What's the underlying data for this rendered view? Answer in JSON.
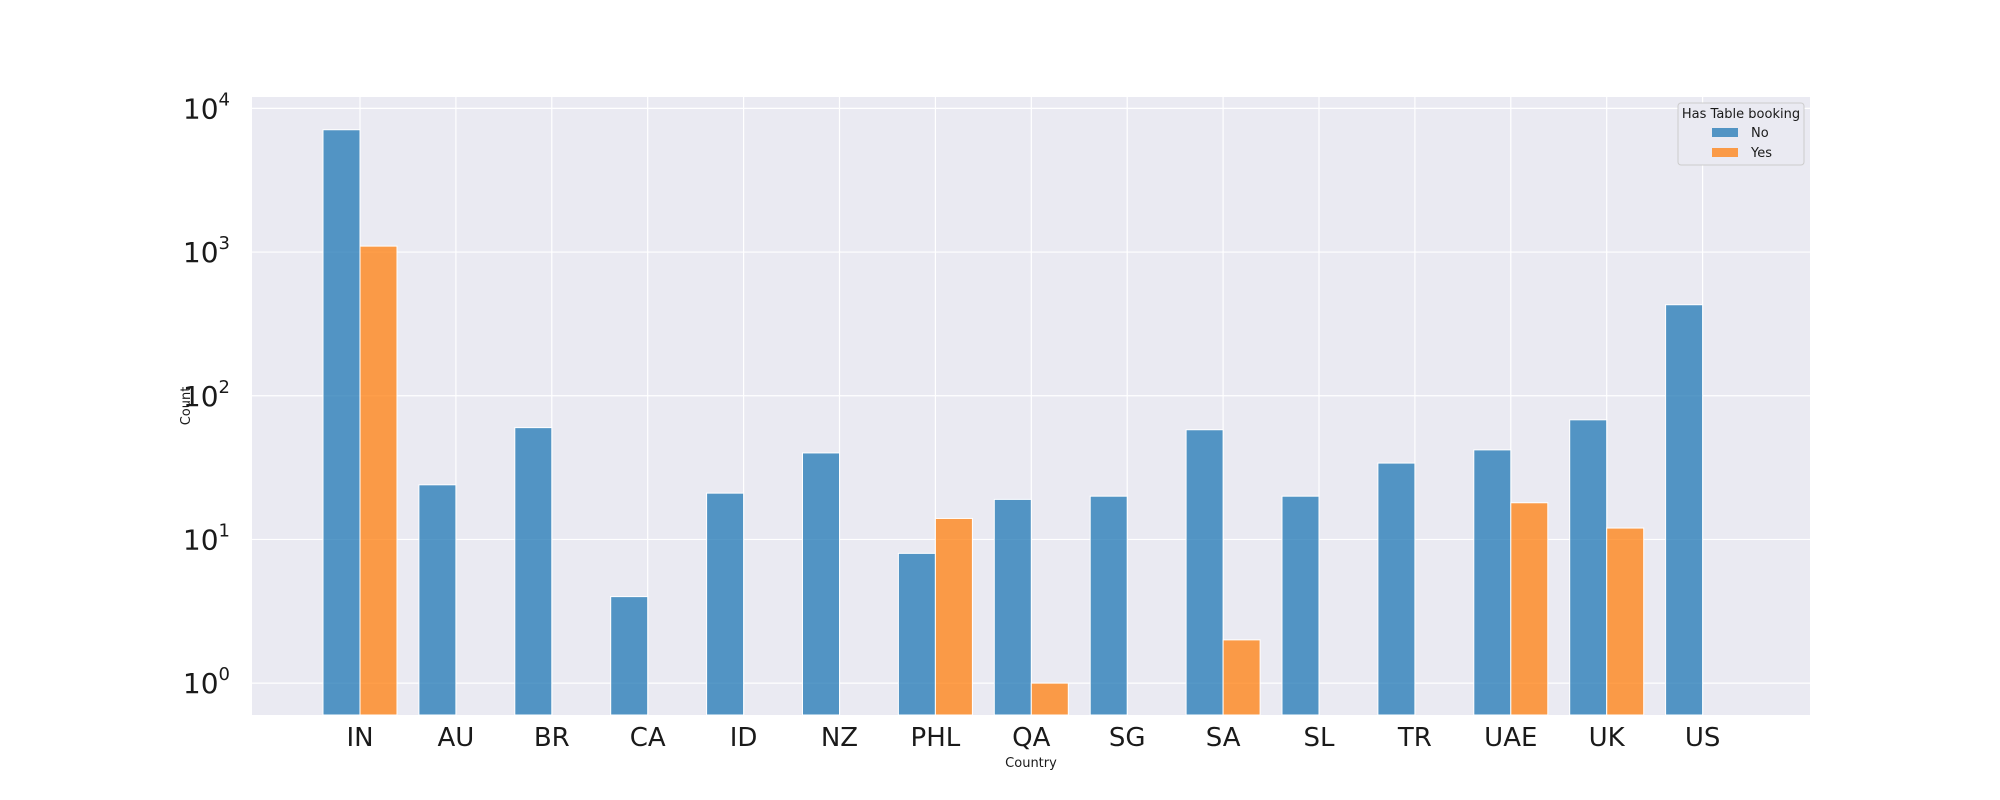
{
  "chart_data": {
    "type": "bar",
    "scale": "log",
    "xlabel": "Country",
    "ylabel": "Count",
    "categories": [
      "IN",
      "AU",
      "BR",
      "CA",
      "ID",
      "NZ",
      "PHL",
      "QA",
      "SG",
      "SA",
      "SL",
      "TR",
      "UAE",
      "UK",
      "US"
    ],
    "ylim": [
      0.6,
      12000
    ],
    "yticks": [
      1,
      10,
      100,
      1000,
      10000
    ],
    "ytick_labels": [
      {
        "base": "10",
        "exp": "0"
      },
      {
        "base": "10",
        "exp": "1"
      },
      {
        "base": "10",
        "exp": "2"
      },
      {
        "base": "10",
        "exp": "3"
      },
      {
        "base": "10",
        "exp": "4"
      }
    ],
    "grid": true,
    "legend": {
      "title": "Has Table booking",
      "placement": "top-right"
    },
    "series": [
      {
        "name": "No",
        "color": "#1f77b4",
        "values": [
          7100,
          24,
          60,
          4,
          21,
          40,
          8,
          19,
          20,
          58,
          20,
          34,
          42,
          68,
          430
        ]
      },
      {
        "name": "Yes",
        "color": "#ff7f0e",
        "values": [
          1100,
          null,
          null,
          null,
          null,
          null,
          14,
          1,
          null,
          2,
          null,
          null,
          18,
          12,
          null
        ]
      }
    ]
  }
}
